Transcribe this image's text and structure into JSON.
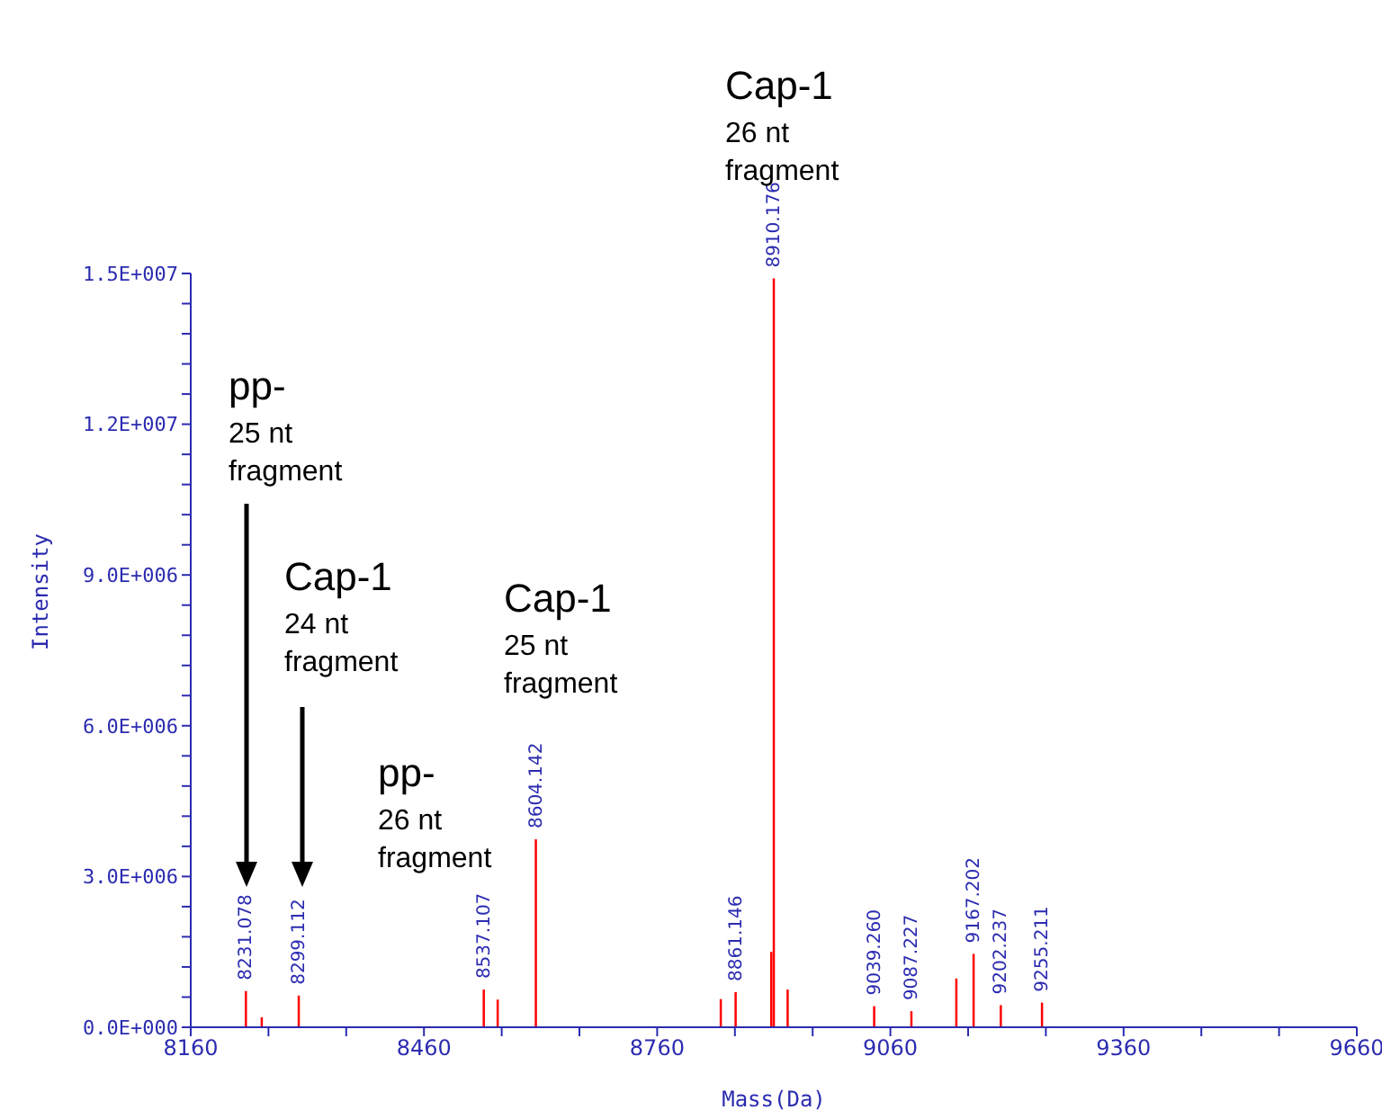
{
  "chart_data": {
    "type": "bar",
    "xlabel": "Mass(Da)",
    "ylabel": "Intensity",
    "x": [
      8231.1,
      8251.5,
      8299.1,
      8537.1,
      8555,
      8604.1,
      8842,
      8861.1,
      8907,
      8910.2,
      8928,
      9039.3,
      9087.2,
      9145,
      9167.2,
      9202.2,
      9255.2
    ],
    "values": [
      720000,
      200000,
      630000,
      750000,
      550000,
      3740000,
      560000,
      700000,
      1500000,
      14900000,
      750000,
      420000,
      320000,
      970000,
      1460000,
      440000,
      490000
    ],
    "color": "#ff0000",
    "xlim": [
      8160,
      9660
    ],
    "xticks": [
      8160,
      {
        "value": 8260,
        "label": null
      },
      {
        "value": 8360,
        "label": null
      },
      8460,
      {
        "value": 8560,
        "label": null
      },
      {
        "value": 8660,
        "label": null
      },
      8760,
      {
        "value": 8860,
        "label": null
      },
      {
        "value": 8960,
        "label": null
      },
      9060,
      {
        "value": 9160,
        "label": null
      },
      {
        "value": 9260,
        "label": null
      },
      9360,
      {
        "value": 9460,
        "label": null
      },
      {
        "value": 9560,
        "label": null
      },
      9660
    ],
    "ylim": [
      0,
      15000000
    ],
    "yticks": [
      {
        "value": 0,
        "label": "0.0E+000"
      },
      {
        "value": 600000,
        "label": null
      },
      {
        "value": 1200000,
        "label": null
      },
      {
        "value": 1800000,
        "label": null
      },
      {
        "value": 2400000,
        "label": null
      },
      {
        "value": 3000000,
        "label": "3.0E+006"
      },
      {
        "value": 3600000,
        "label": null
      },
      {
        "value": 4200000,
        "label": null
      },
      {
        "value": 4800000,
        "label": null
      },
      {
        "value": 5400000,
        "label": null
      },
      {
        "value": 6000000,
        "label": "6.0E+006"
      },
      {
        "value": 6600000,
        "label": null
      },
      {
        "value": 7200000,
        "label": null
      },
      {
        "value": 7800000,
        "label": null
      },
      {
        "value": 8400000,
        "label": null
      },
      {
        "value": 9000000,
        "label": "9.0E+006"
      },
      {
        "value": 9600000,
        "label": null
      },
      {
        "value": 10200000,
        "label": null
      },
      {
        "value": 10800000,
        "label": null
      },
      {
        "value": 11400000,
        "label": null
      },
      {
        "value": 12000000,
        "label": "1.2E+007"
      },
      {
        "value": 12600000,
        "label": null
      },
      {
        "value": 13200000,
        "label": null
      },
      {
        "value": 13800000,
        "label": null
      },
      {
        "value": 14400000,
        "label": null
      },
      {
        "value": 15000000,
        "label": "1.5E+007"
      }
    ],
    "grid": false,
    "legend": false,
    "annotations": [
      "pp-\n25 nt\nfragment",
      "Cap-1\n24 nt\nfragment",
      "pp-\n26 nt\nfragment",
      "Cap-1\n25 nt\nfragment",
      "Cap-1\n26 nt\nfragment",
      {
        "text": "8231.078",
        "x": 8231.1,
        "y": 720000
      },
      {
        "text": "8299.112",
        "x": 8299.1,
        "y": 630000
      },
      {
        "text": "8537.107",
        "x": 8537.1,
        "y": 750000
      },
      {
        "text": "8604.142",
        "x": 8604.1,
        "y": 3740000
      },
      {
        "text": "8861.146",
        "x": 8861.1,
        "y": 700000
      },
      {
        "text": "8910.176",
        "x": 8910.2,
        "y": 14900000
      },
      {
        "text": "9039.260",
        "x": 9039.3,
        "y": 420000
      },
      {
        "text": "9087.227",
        "x": 9087.2,
        "y": 320000
      },
      {
        "text": "9167.202",
        "x": 9167.2,
        "y": 1460000
      },
      {
        "text": "9202.237",
        "x": 9202.2,
        "y": 440000
      },
      {
        "text": "9255.211",
        "x": 9255.2,
        "y": 490000
      }
    ]
  }
}
